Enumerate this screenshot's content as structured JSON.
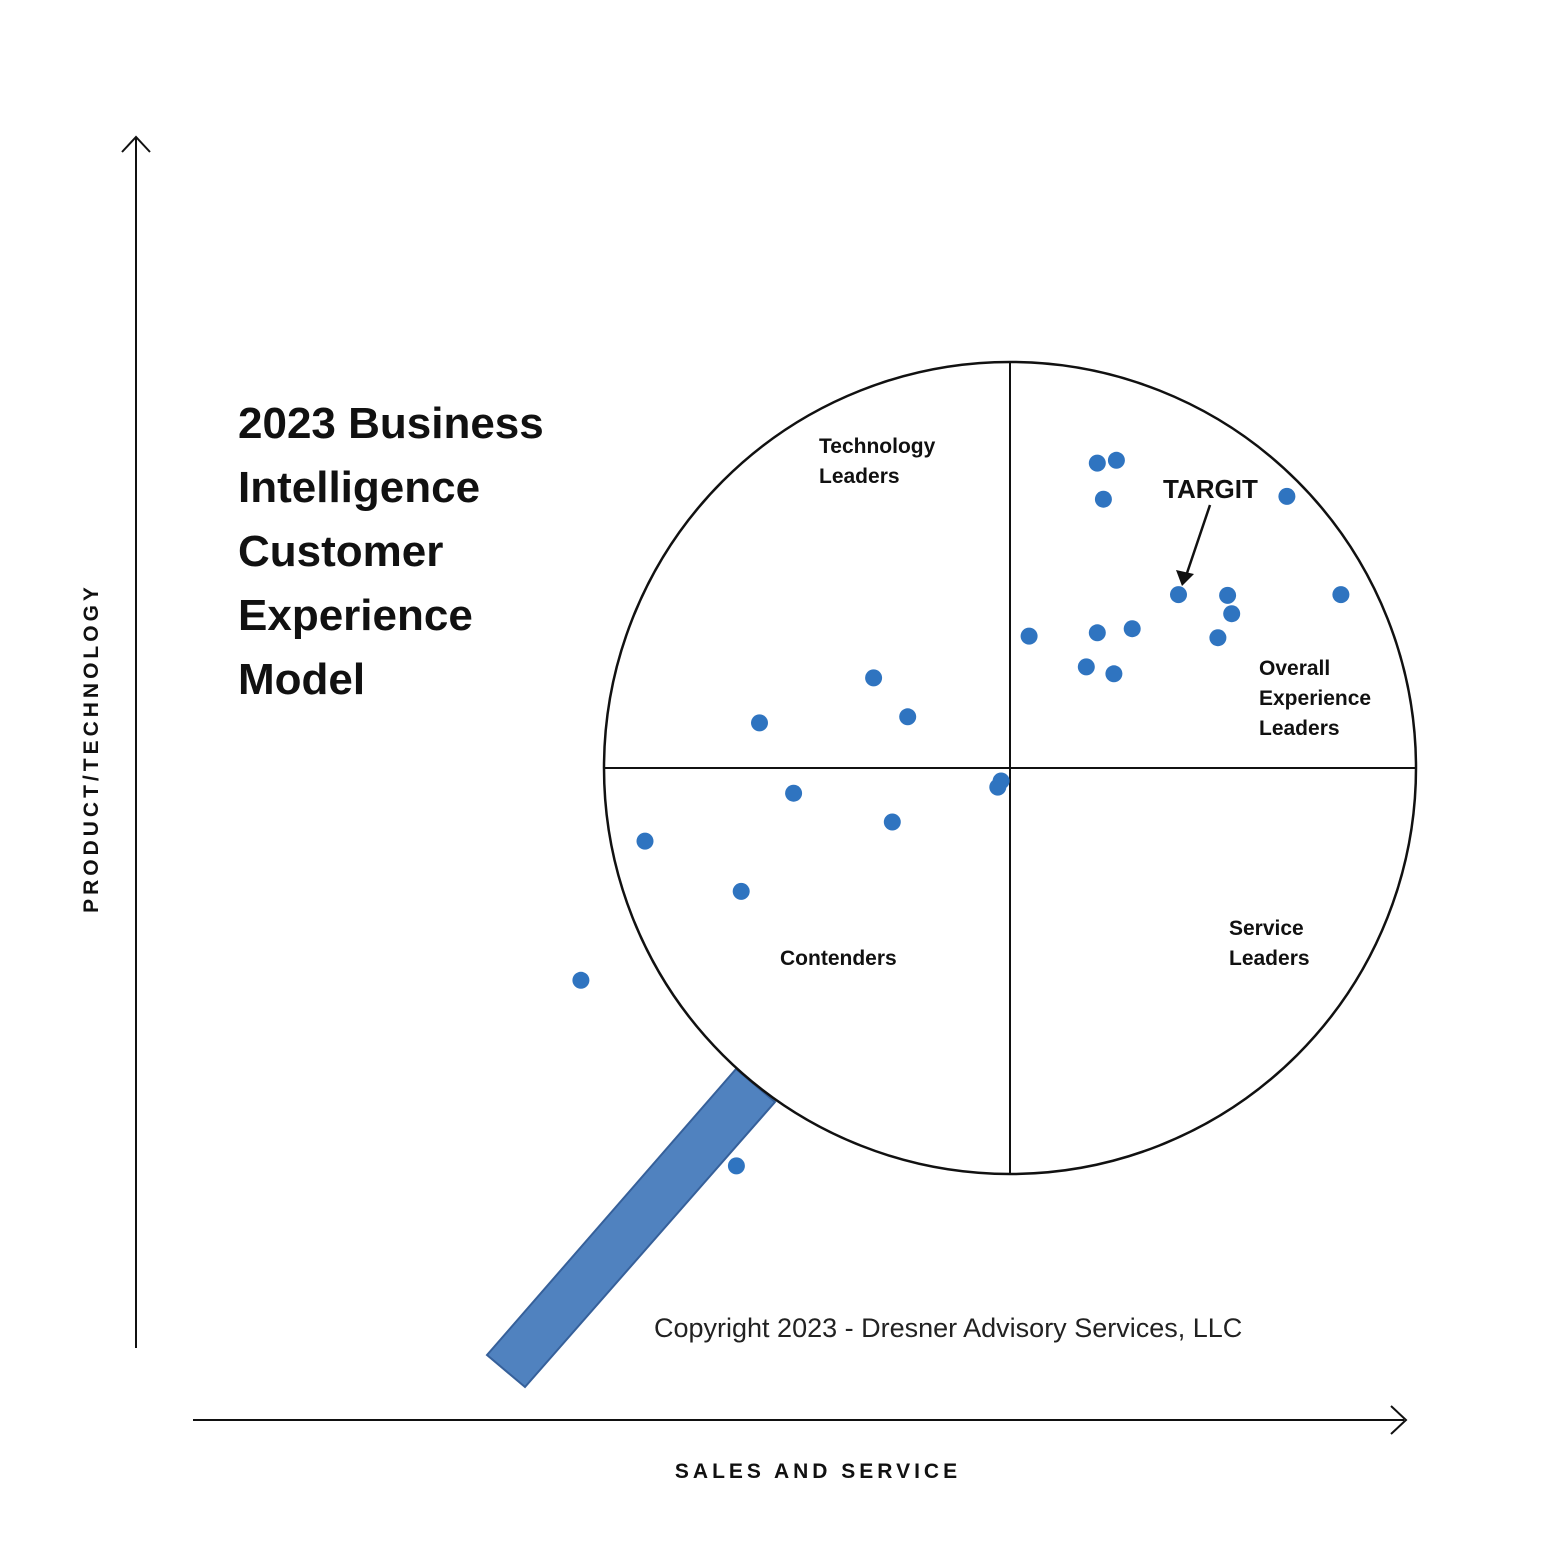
{
  "title_lines": [
    "2023 Business",
    "Intelligence",
    "Customer",
    "Experience",
    "Model"
  ],
  "copyright": "Copyright 2023 - Dresner Advisory Services, LLC",
  "colors": {
    "point": "#2f74c0",
    "handle": "#5082bf",
    "handle_stroke": "#36609a",
    "ink": "#111111"
  },
  "chart_data": {
    "type": "scatter",
    "xlabel": "SALES AND SERVICE",
    "ylabel": "PRODUCT/TECHNOLOGY",
    "xlim": [
      -1,
      1
    ],
    "ylim": [
      -1,
      1
    ],
    "grid": false,
    "quadrants": [
      {
        "name": "technology-leaders",
        "lines": [
          "Technology",
          "Leaders"
        ]
      },
      {
        "name": "overall-experience-leaders",
        "lines": [
          "Overall",
          "Experience",
          "Leaders"
        ]
      },
      {
        "name": "contenders",
        "lines": [
          "Contenders"
        ]
      },
      {
        "name": "service-leaders",
        "lines": [
          "Service",
          "Leaders"
        ]
      }
    ],
    "annotation": {
      "text": "TARGIT",
      "point_index": 7
    },
    "points": [
      {
        "x": 0.215,
        "y": 0.751
      },
      {
        "x": 0.262,
        "y": 0.758
      },
      {
        "x": 0.23,
        "y": 0.662
      },
      {
        "x": 0.682,
        "y": 0.669
      },
      {
        "x": 0.815,
        "y": 0.427
      },
      {
        "x": 0.536,
        "y": 0.425
      },
      {
        "x": 0.546,
        "y": 0.38
      },
      {
        "x": 0.415,
        "y": 0.427
      },
      {
        "x": 0.512,
        "y": 0.321
      },
      {
        "x": 0.047,
        "y": 0.325
      },
      {
        "x": 0.215,
        "y": 0.333
      },
      {
        "x": 0.301,
        "y": 0.343
      },
      {
        "x": 0.188,
        "y": 0.249
      },
      {
        "x": 0.256,
        "y": 0.232
      },
      {
        "x": -0.336,
        "y": 0.222
      },
      {
        "x": -0.252,
        "y": 0.126
      },
      {
        "x": -0.617,
        "y": 0.111
      },
      {
        "x": -0.533,
        "y": -0.062
      },
      {
        "x": -0.29,
        "y": -0.133
      },
      {
        "x": -0.022,
        "y": -0.032
      },
      {
        "x": -0.03,
        "y": -0.047
      },
      {
        "x": -0.899,
        "y": -0.18
      },
      {
        "x": -0.662,
        "y": -0.304
      },
      {
        "x": -1.057,
        "y": -0.523
      },
      {
        "x": -0.674,
        "y": -0.98
      }
    ]
  }
}
